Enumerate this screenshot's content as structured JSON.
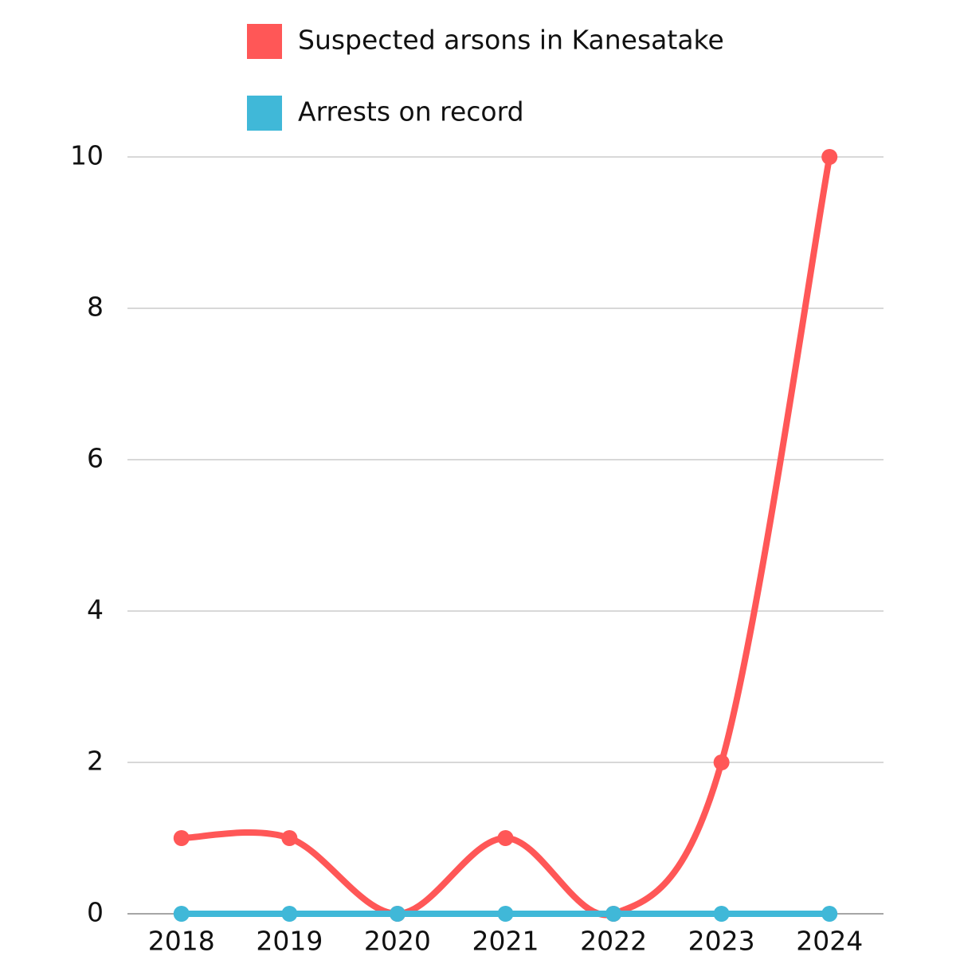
{
  "chart_data": {
    "type": "line",
    "categories": [
      "2018",
      "2019",
      "2020",
      "2021",
      "2022",
      "2023",
      "2024"
    ],
    "series": [
      {
        "name": "Suspected arsons in Kanesatake",
        "color": "#ff5757",
        "values": [
          1,
          1,
          0,
          1,
          0,
          2,
          10
        ]
      },
      {
        "name": "Arrests on record",
        "color": "#40b8d8",
        "values": [
          0,
          0,
          0,
          0,
          0,
          0,
          0
        ]
      }
    ],
    "ylim": [
      0,
      10
    ],
    "yticks": [
      0,
      2,
      4,
      6,
      8,
      10
    ],
    "grid": true,
    "legend": "top"
  }
}
